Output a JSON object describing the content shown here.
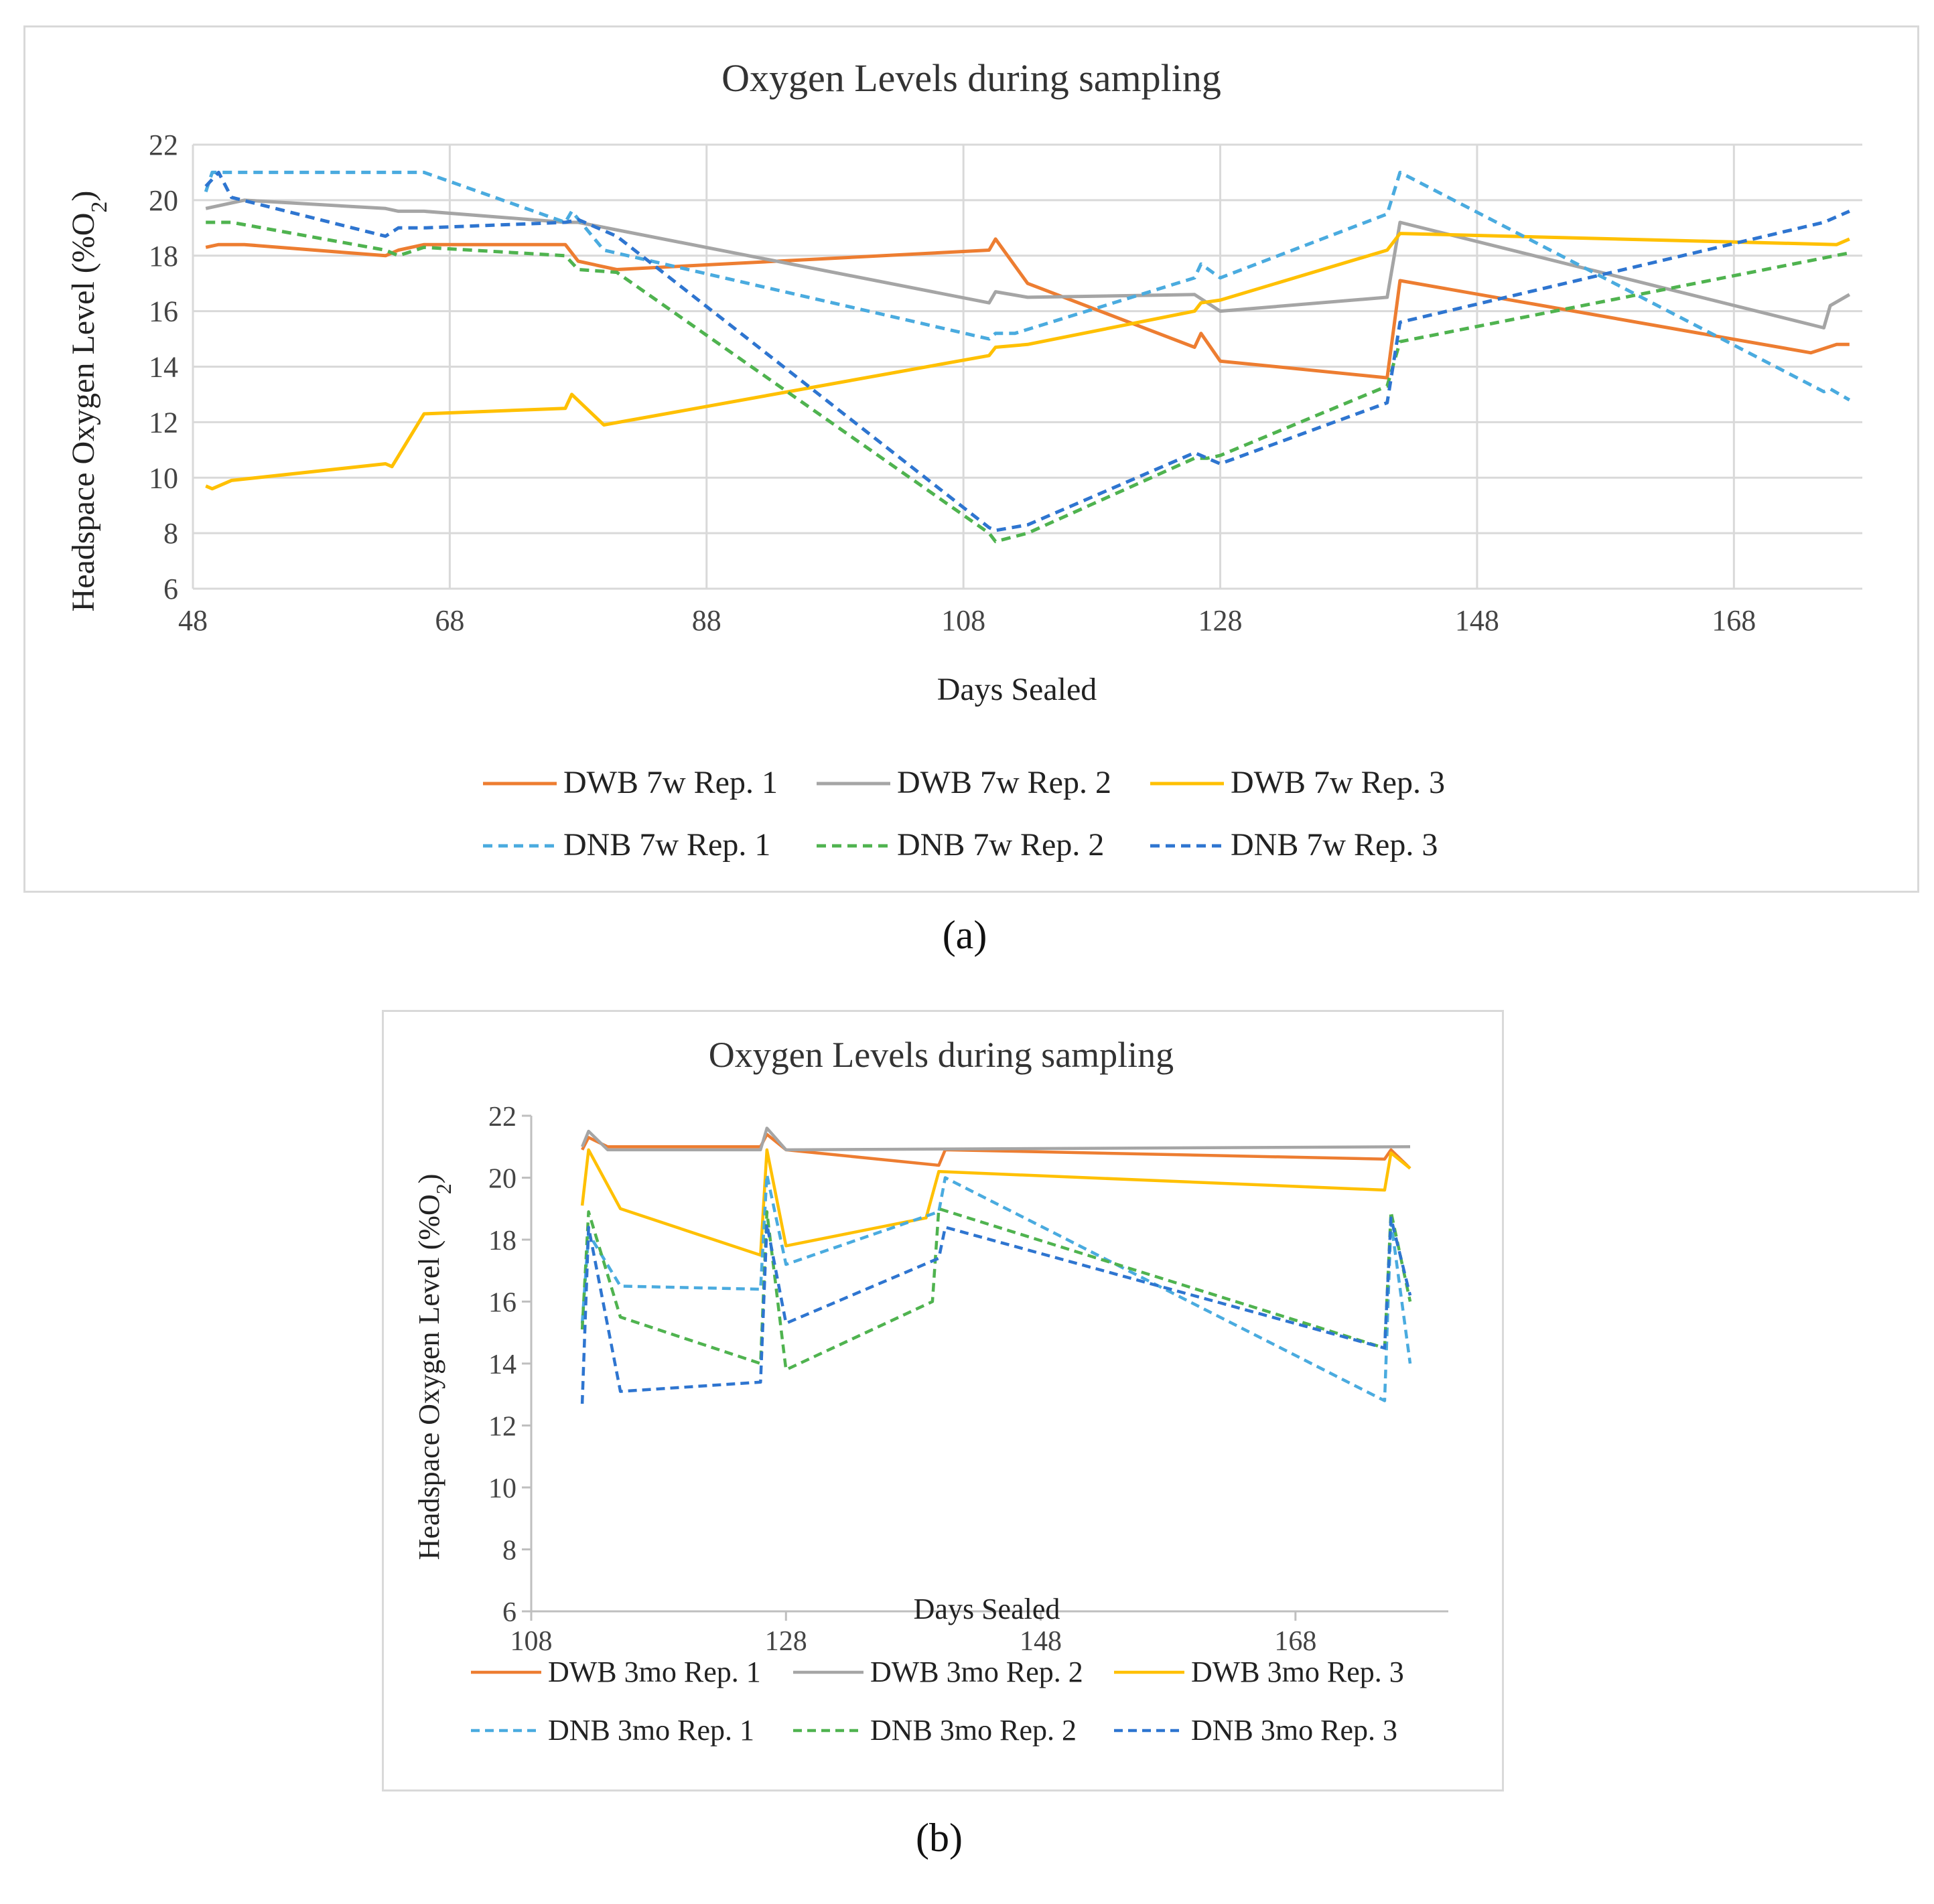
{
  "figure": {
    "caption_a": "(a)",
    "caption_b": "(b)"
  },
  "chart_data": [
    {
      "id": "a",
      "type": "line",
      "title": "Oxygen Levels during sampling",
      "xlabel": "Days Sealed",
      "ylabel_prefix": "Headspace Oxygen Level (%O",
      "ylabel_sub": "2",
      "ylabel_suffix": ")",
      "xlim": [
        48,
        178
      ],
      "ylim": [
        6,
        22
      ],
      "xticks": [
        48,
        68,
        88,
        108,
        128,
        148,
        168
      ],
      "yticks": [
        6,
        8,
        10,
        12,
        14,
        16,
        18,
        20,
        22
      ],
      "grid": true,
      "legend_position": "bottom",
      "series": [
        {
          "name": "DWB 7w Rep. 1",
          "color": "#ED7D31",
          "dashed": false,
          "x": [
            49,
            50,
            52,
            63,
            64,
            66,
            77,
            78,
            81,
            110,
            110.5,
            113,
            126,
            126.5,
            128,
            141,
            142,
            174,
            176,
            177
          ],
          "y": [
            18.3,
            18.4,
            18.4,
            18.0,
            18.2,
            18.4,
            18.4,
            17.8,
            17.5,
            18.2,
            18.6,
            17.0,
            14.7,
            15.2,
            14.2,
            13.6,
            17.1,
            14.5,
            14.8,
            14.8
          ]
        },
        {
          "name": "DWB 7w Rep. 2",
          "color": "#A5A5A5",
          "dashed": false,
          "x": [
            49,
            52,
            63,
            64,
            66,
            77,
            78,
            110,
            110.5,
            113,
            126,
            128,
            141,
            142,
            175,
            175.5,
            177
          ],
          "y": [
            19.7,
            20.0,
            19.7,
            19.6,
            19.6,
            19.2,
            19.2,
            16.3,
            16.7,
            16.5,
            16.6,
            16.0,
            16.5,
            19.2,
            15.4,
            16.2,
            16.6
          ]
        },
        {
          "name": "DWB 7w Rep. 3",
          "color": "#FFC000",
          "dashed": false,
          "x": [
            49,
            49.5,
            51,
            63,
            63.5,
            66,
            77,
            77.5,
            80,
            110,
            110.5,
            113,
            126,
            126.5,
            128,
            141,
            142,
            176,
            177
          ],
          "y": [
            9.7,
            9.6,
            9.9,
            10.5,
            10.4,
            12.3,
            12.5,
            13.0,
            11.9,
            14.4,
            14.7,
            14.8,
            16.0,
            16.3,
            16.4,
            18.2,
            18.8,
            18.4,
            18.6
          ]
        },
        {
          "name": "DNB 7w Rep. 1",
          "color": "#4AABDF",
          "dashed": true,
          "x": [
            49,
            49.5,
            66,
            77,
            77.5,
            80,
            110,
            110.5,
            112,
            126,
            126.5,
            128,
            141,
            142,
            175,
            175.5,
            177
          ],
          "y": [
            20.3,
            21.0,
            21.0,
            19.2,
            19.6,
            18.2,
            15.0,
            15.2,
            15.2,
            17.2,
            17.7,
            17.2,
            19.5,
            21.0,
            13.1,
            13.2,
            12.8
          ]
        },
        {
          "name": "DNB 7w Rep. 2",
          "color": "#4FB34F",
          "dashed": true,
          "x": [
            49,
            51,
            63,
            64,
            66,
            77,
            78,
            81,
            110,
            110.5,
            113,
            126,
            127,
            128,
            141,
            142,
            177
          ],
          "y": [
            19.2,
            19.2,
            18.2,
            18.0,
            18.3,
            18.0,
            17.5,
            17.4,
            8.0,
            7.7,
            8.0,
            10.7,
            10.7,
            10.8,
            13.3,
            14.9,
            18.1
          ]
        },
        {
          "name": "DNB 7w Rep. 3",
          "color": "#2E75D0",
          "dashed": true,
          "x": [
            49,
            50,
            51,
            63,
            64,
            66,
            77,
            78,
            81,
            110,
            110.5,
            113,
            126,
            126.5,
            128,
            141,
            142,
            175,
            177
          ],
          "y": [
            20.5,
            21.0,
            20.1,
            18.7,
            19.0,
            19.0,
            19.2,
            19.3,
            18.7,
            8.2,
            8.1,
            8.3,
            10.9,
            10.8,
            10.5,
            12.7,
            15.6,
            19.2,
            19.6
          ]
        }
      ]
    },
    {
      "id": "b",
      "type": "line",
      "title": "Oxygen Levels during sampling",
      "xlabel": "Days Sealed",
      "ylabel_prefix": "Headspace Oxygen Level (%O",
      "ylabel_sub": "2",
      "ylabel_suffix": ")",
      "xlim": [
        108,
        180
      ],
      "ylim": [
        6,
        22
      ],
      "xticks": [
        108,
        128,
        148,
        168
      ],
      "yticks": [
        6,
        8,
        10,
        12,
        14,
        16,
        18,
        20,
        22
      ],
      "grid": false,
      "legend_position": "bottom",
      "series": [
        {
          "name": "DWB 3mo Rep. 1",
          "color": "#ED7D31",
          "dashed": false,
          "x": [
            112,
            112.5,
            114,
            126,
            126.5,
            128,
            140,
            140.5,
            175,
            175.5,
            177
          ],
          "y": [
            20.9,
            21.3,
            21.0,
            21.0,
            21.4,
            20.9,
            20.4,
            20.9,
            20.6,
            20.9,
            20.3
          ]
        },
        {
          "name": "DWB 3mo Rep. 2",
          "color": "#A5A5A5",
          "dashed": false,
          "x": [
            112,
            112.5,
            114,
            126,
            126.5,
            128,
            177
          ],
          "y": [
            21.0,
            21.5,
            20.9,
            20.9,
            21.6,
            20.9,
            21.0
          ]
        },
        {
          "name": "DWB 3mo Rep. 3",
          "color": "#FFC000",
          "dashed": false,
          "x": [
            112,
            112.5,
            115,
            126,
            126.5,
            128,
            139,
            140,
            175,
            175.5,
            177
          ],
          "y": [
            19.1,
            20.9,
            19.0,
            17.5,
            20.9,
            17.8,
            18.7,
            20.2,
            19.6,
            20.8,
            20.3
          ]
        },
        {
          "name": "DNB 3mo Rep. 1",
          "color": "#4AABDF",
          "dashed": true,
          "x": [
            112,
            112.5,
            115,
            126,
            126.5,
            128,
            140,
            140.5,
            175,
            175.5,
            177
          ],
          "y": [
            15.3,
            18.2,
            16.5,
            16.4,
            20.1,
            17.2,
            18.9,
            20.0,
            12.8,
            18.6,
            14.0
          ]
        },
        {
          "name": "DNB 3mo Rep. 2",
          "color": "#4FB34F",
          "dashed": true,
          "x": [
            112,
            112.5,
            115,
            126,
            126.5,
            128,
            139.5,
            140,
            175,
            175.5,
            177
          ],
          "y": [
            15.1,
            18.9,
            15.5,
            14.0,
            18.9,
            13.8,
            16.0,
            19.0,
            14.5,
            18.9,
            16.0
          ]
        },
        {
          "name": "DNB 3mo Rep. 3",
          "color": "#2E75D0",
          "dashed": true,
          "x": [
            112,
            112.5,
            115,
            126,
            126.5,
            128,
            140,
            140.5,
            175,
            175.5,
            177
          ],
          "y": [
            12.7,
            18.4,
            13.1,
            13.4,
            18.5,
            15.3,
            17.4,
            18.4,
            14.5,
            18.7,
            16.2
          ]
        }
      ]
    }
  ]
}
